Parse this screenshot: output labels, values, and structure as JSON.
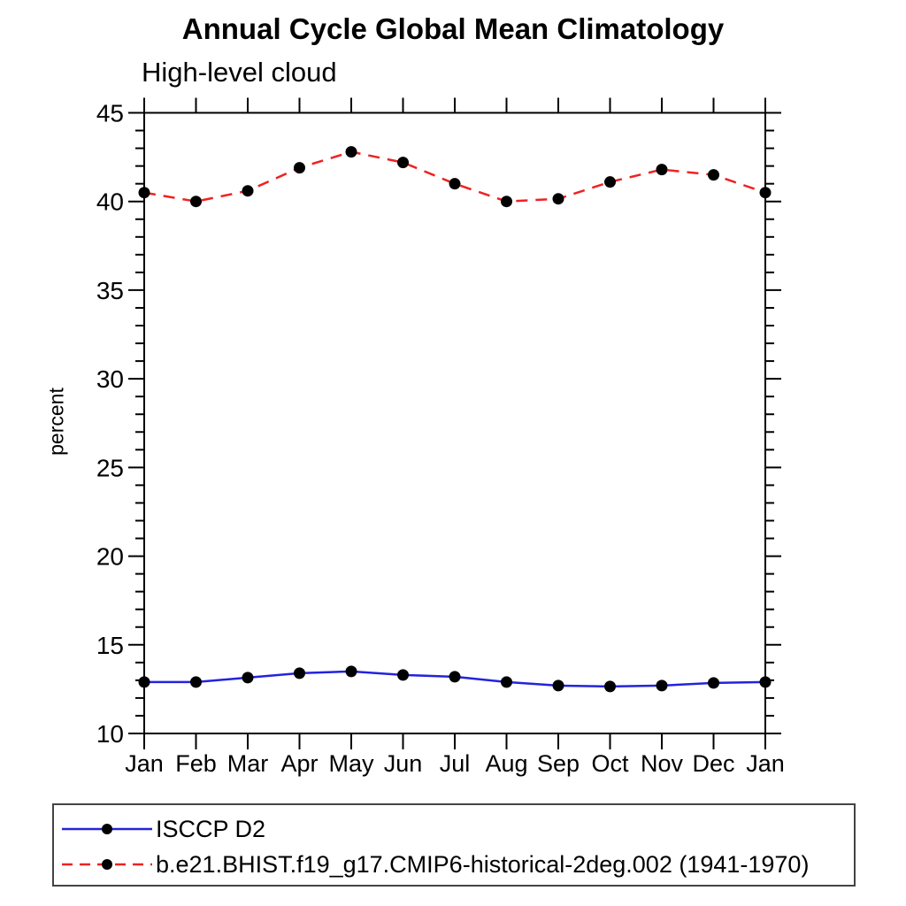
{
  "chart_data": {
    "type": "line",
    "title": "Annual Cycle Global Mean Climatology",
    "subtitle": "High-level cloud",
    "xlabel": "",
    "ylabel": "percent",
    "categories": [
      "Jan",
      "Feb",
      "Mar",
      "Apr",
      "May",
      "Jun",
      "Jul",
      "Aug",
      "Sep",
      "Oct",
      "Nov",
      "Dec",
      "Jan"
    ],
    "ylim": [
      10,
      45
    ],
    "ytick_major": [
      10,
      15,
      20,
      25,
      30,
      35,
      40,
      45
    ],
    "ytick_minor_step": 1,
    "grid": false,
    "legend_position": "bottom-left-box",
    "marker_color": "#000000",
    "axis_color": "#000000",
    "background_color": "#ffffff",
    "series": [
      {
        "name": "ISCCP D2",
        "color": "#2323dd",
        "style": "solid",
        "marker": "filled-circle",
        "values": [
          12.9,
          12.9,
          13.15,
          13.4,
          13.5,
          13.3,
          13.2,
          12.9,
          12.7,
          12.65,
          12.7,
          12.85,
          12.9
        ]
      },
      {
        "name": "b.e21.BHIST.f19_g17.CMIP6-historical-2deg.002 (1941-1970)",
        "color": "#ee2222",
        "style": "dashed",
        "marker": "filled-circle",
        "values": [
          40.5,
          40.0,
          40.6,
          41.9,
          42.8,
          42.2,
          41.0,
          40.0,
          40.15,
          41.1,
          41.8,
          41.5,
          40.5
        ]
      }
    ]
  }
}
